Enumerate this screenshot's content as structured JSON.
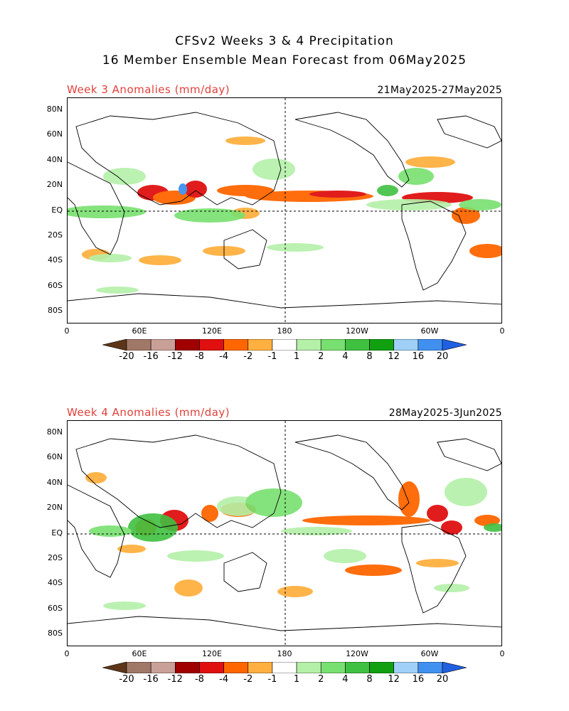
{
  "header": {
    "title_line1": "CFSv2 Weeks 3 & 4 Precipitation",
    "title_line2": "16 Member Ensemble Mean Forecast from 06May2025"
  },
  "panels": [
    {
      "label": "Week 3 Anomalies (mm/day)",
      "date_range": "21May2025-27May2025"
    },
    {
      "label": "Week 4 Anomalies (mm/day)",
      "date_range": "28May2025-3Jun2025"
    }
  ],
  "axes": {
    "lat_labels": [
      "80N",
      "60N",
      "40N",
      "20N",
      "EQ",
      "20S",
      "40S",
      "60S",
      "80S"
    ],
    "lon_labels": [
      "0",
      "60E",
      "120E",
      "180",
      "120W",
      "60W",
      "0"
    ]
  },
  "colorbar": {
    "labels": [
      "-20",
      "-16",
      "-12",
      "-8",
      "-4",
      "-2",
      "-1",
      "1",
      "2",
      "4",
      "8",
      "12",
      "16",
      "20"
    ],
    "colors": [
      "#5c3518",
      "#a07868",
      "#c8a098",
      "#a00000",
      "#e01010",
      "#ff6600",
      "#ffb040",
      "#ffffff",
      "#b4f0a8",
      "#78e070",
      "#40c040",
      "#10a010",
      "#a0d0f8",
      "#4090f0",
      "#2060e0"
    ]
  }
}
